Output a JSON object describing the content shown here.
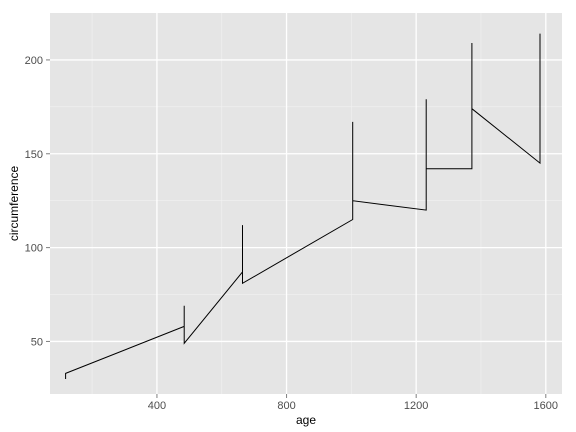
{
  "chart_data": {
    "type": "line",
    "title": "",
    "xlabel": "age",
    "ylabel": "circumference",
    "xlim": [
      70,
      1650
    ],
    "ylim": [
      22,
      225
    ],
    "grid": true,
    "x_ticks": [
      400,
      800,
      1200,
      1600
    ],
    "x_minor_ticks": [
      200,
      600,
      1000,
      1400
    ],
    "y_ticks": [
      50,
      100,
      150,
      200
    ],
    "y_minor_ticks": [
      75,
      125,
      175
    ],
    "series": [
      {
        "x": [
          118,
          118,
          484,
          484,
          484,
          664,
          664,
          664,
          1004,
          1004,
          1004,
          1231,
          1231,
          1231,
          1372,
          1372,
          1372,
          1582,
          1582
        ],
        "y": [
          30,
          33,
          58,
          69,
          49,
          87,
          112,
          81,
          115,
          167,
          125,
          120,
          179,
          142,
          142,
          209,
          174,
          145,
          214
        ]
      }
    ]
  }
}
